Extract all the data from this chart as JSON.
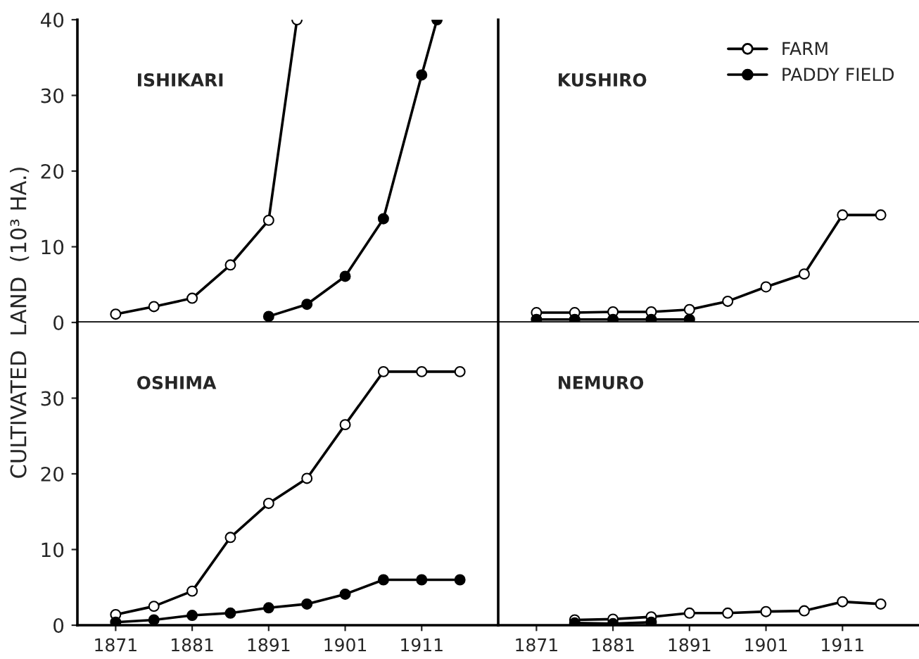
{
  "chart_data": [
    {
      "type": "line",
      "ylabel": "CULTIVATED  LAND  (10³ HA.)",
      "annotations": [
        "ISHIKARI"
      ],
      "xlim": [
        1866,
        1921
      ],
      "ylim": [
        0,
        40
      ],
      "yticks": [
        0,
        10,
        20,
        30,
        40
      ],
      "tick_labels": "y",
      "marker": "circle",
      "legend": false,
      "grid": false,
      "series": [
        {
          "color": "#000000",
          "x": [
            1871,
            1876,
            1881,
            1886,
            1891,
            1894.7
          ],
          "values": [
            1.1,
            2.1,
            3.2,
            7.6,
            13.5,
            40
          ]
        },
        {
          "color": "#000000",
          "x": [
            1891,
            1896,
            1901,
            1906,
            1911,
            1913
          ],
          "values": [
            0.8,
            2.4,
            6.1,
            13.7,
            32.7,
            40
          ]
        }
      ]
    },
    {
      "type": "line",
      "annotations": [
        "KUSHIRO"
      ],
      "xlim": [
        1866,
        1921
      ],
      "ylim": [
        0,
        40
      ],
      "tick_labels": false,
      "marker": "circle",
      "legend": "top right",
      "grid": false,
      "series": [
        {
          "name": "FARM",
          "color": "#000000",
          "x": [
            1871,
            1876,
            1881,
            1886,
            1891,
            1896,
            1901,
            1906,
            1911,
            1916
          ],
          "values": [
            1.3,
            1.3,
            1.4,
            1.4,
            1.7,
            2.8,
            4.7,
            6.4,
            14.2,
            14.2
          ]
        },
        {
          "name": "PADDY FIELD",
          "color": "#000000",
          "x": [
            1871,
            1876,
            1881,
            1886,
            1891
          ],
          "values": [
            0.4,
            0.4,
            0.4,
            0.4,
            0.4
          ]
        }
      ]
    },
    {
      "type": "line",
      "annotations": [
        "OSHIMA"
      ],
      "xlim": [
        1866,
        1921
      ],
      "xticks": [
        1871,
        1881,
        1891,
        1901,
        1911
      ],
      "ylim": [
        0,
        40
      ],
      "yticks": [
        0,
        10,
        20,
        30
      ],
      "marker": "circle",
      "legend": false,
      "grid": false,
      "series": [
        {
          "color": "#000000",
          "x": [
            1871,
            1876,
            1881,
            1886,
            1891,
            1896,
            1901,
            1906,
            1911,
            1916
          ],
          "values": [
            1.4,
            2.5,
            4.5,
            11.6,
            16.1,
            19.4,
            26.5,
            33.5,
            33.5,
            33.5
          ]
        },
        {
          "color": "#000000",
          "x": [
            1871,
            1876,
            1881,
            1886,
            1891,
            1896,
            1901,
            1906,
            1911,
            1916
          ],
          "values": [
            0.4,
            0.7,
            1.3,
            1.6,
            2.3,
            2.8,
            4.1,
            6.0,
            6.0,
            6.0
          ]
        }
      ]
    },
    {
      "type": "line",
      "annotations": [
        "NEMURO"
      ],
      "xlim": [
        1866,
        1921
      ],
      "xticks": [
        1871,
        1881,
        1891,
        1901,
        1911
      ],
      "ylim": [
        0,
        40
      ],
      "tick_labels": "x",
      "marker": "circle",
      "legend": false,
      "grid": false,
      "series": [
        {
          "color": "#000000",
          "x": [
            1876,
            1881,
            1886,
            1891,
            1896,
            1901,
            1906,
            1911,
            1916
          ],
          "values": [
            0.7,
            0.8,
            1.1,
            1.6,
            1.6,
            1.8,
            1.9,
            3.1,
            2.8
          ]
        },
        {
          "color": "#000000",
          "x": [
            1876,
            1881,
            1886
          ],
          "values": [
            0.3,
            0.2,
            0.4
          ]
        }
      ]
    }
  ]
}
